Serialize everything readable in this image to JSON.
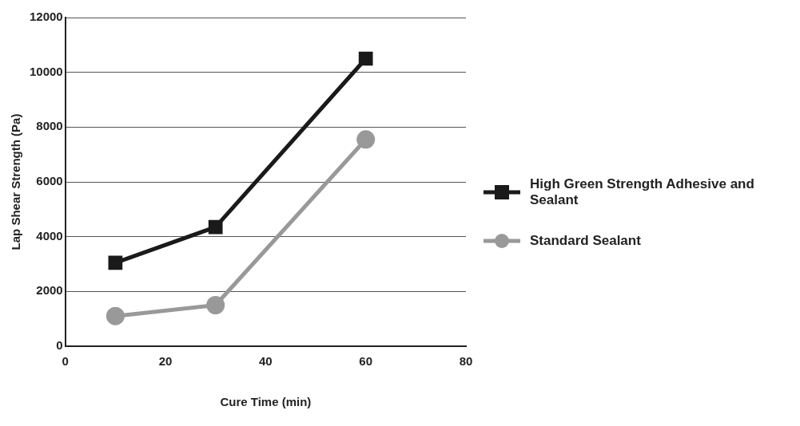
{
  "chart_data": {
    "type": "line",
    "xlabel": "Cure Time (min)",
    "ylabel": "Lap Shear Strength (Pa)",
    "x": [
      10,
      30,
      60
    ],
    "series": [
      {
        "name": "High Green Strength Adhesive and Sealant",
        "color": "#1a1a1a",
        "values": [
          3050,
          4350,
          10500
        ],
        "marker": "square"
      },
      {
        "name": "Standard Sealant",
        "color": "#999999",
        "values": [
          1100,
          1500,
          7550
        ],
        "marker": "circle"
      }
    ],
    "xlim": [
      0,
      80
    ],
    "xticks": [
      0,
      20,
      40,
      60,
      80
    ],
    "ylim": [
      0,
      12000
    ],
    "yticks": [
      0,
      2000,
      4000,
      6000,
      8000,
      10000,
      12000
    ],
    "grid": "y",
    "legend": "right",
    "line_style": "solid"
  }
}
